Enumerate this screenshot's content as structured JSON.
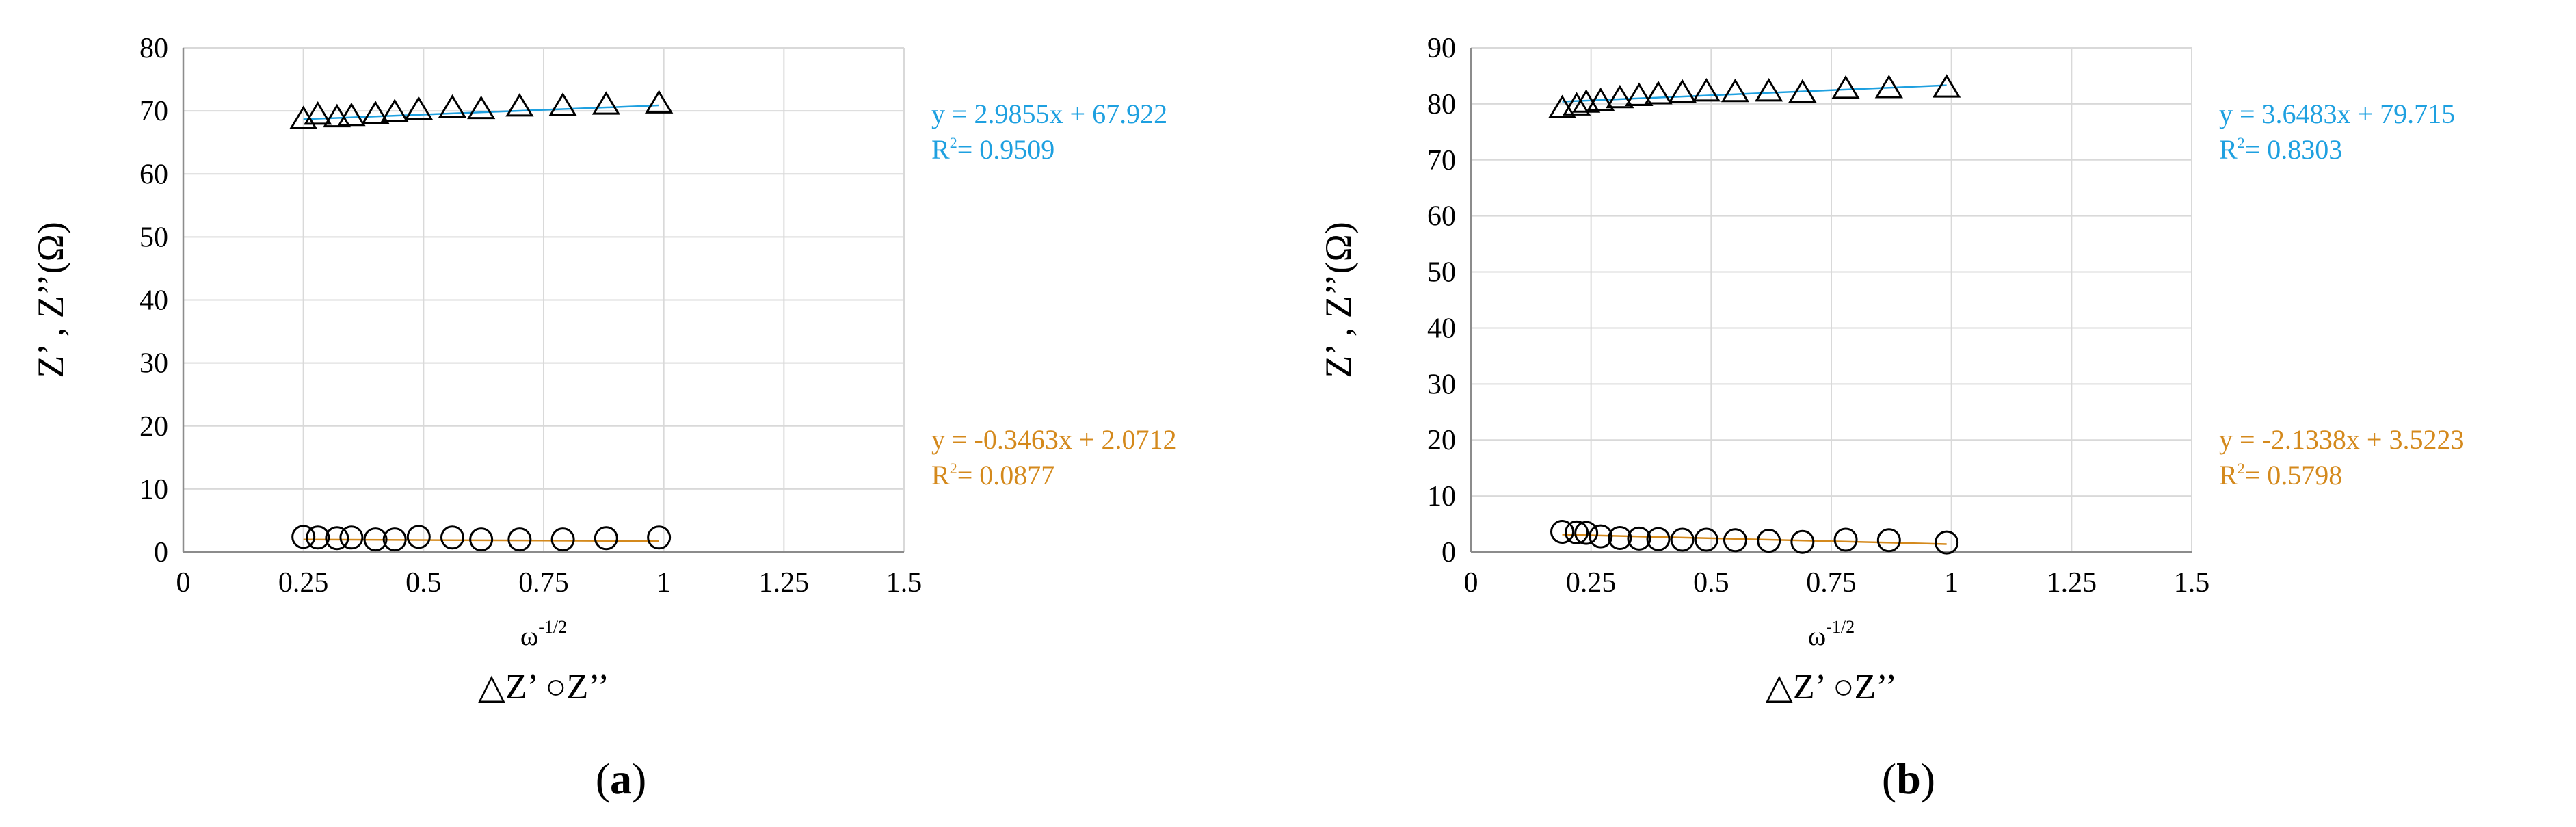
{
  "chart_data": [
    {
      "type": "scatter",
      "panel_label": "a",
      "xlabel": "ω",
      "xlabel_sup": "-1/2",
      "ylabel": "Z’ , Z’’(Ω)",
      "legend_text": "△Z’ ○Z’’",
      "xlim": [
        0,
        1.5
      ],
      "ylim": [
        0,
        80
      ],
      "xticks": [
        "0",
        "0.25",
        "0.5",
        "0.75",
        "1",
        "1.25",
        "1.5"
      ],
      "yticks": [
        "0",
        "10",
        "20",
        "30",
        "40",
        "50",
        "60",
        "70",
        "80"
      ],
      "grid": true,
      "series": [
        {
          "name": "Z’",
          "marker": "triangle",
          "x": [
            0.25,
            0.28,
            0.32,
            0.35,
            0.4,
            0.44,
            0.49,
            0.56,
            0.62,
            0.7,
            0.79,
            0.88,
            0.99
          ],
          "y": [
            68.5,
            69.2,
            68.8,
            69.0,
            69.3,
            69.6,
            70.0,
            70.3,
            70.1,
            70.5,
            70.6,
            70.8,
            71.0
          ],
          "trend": {
            "slope": 2.9855,
            "intercept": 67.922,
            "color": "#1ea0e0"
          },
          "equation": "y = 2.9855x + 67.922",
          "r2_prefix": "R",
          "r2_sup": "2",
          "r2_value": "= 0.9509",
          "color": "#1ea0e0"
        },
        {
          "name": "Z’’",
          "marker": "circle",
          "x": [
            0.25,
            0.28,
            0.32,
            0.35,
            0.4,
            0.44,
            0.49,
            0.56,
            0.62,
            0.7,
            0.79,
            0.88,
            0.99
          ],
          "y": [
            2.4,
            2.3,
            2.2,
            2.3,
            2.0,
            2.0,
            2.4,
            2.3,
            2.0,
            2.0,
            2.0,
            2.2,
            2.3
          ],
          "trend": {
            "slope": -0.3463,
            "intercept": 2.0712,
            "color": "#d4891c"
          },
          "equation": "y = -0.3463x + 2.0712",
          "r2_prefix": "R",
          "r2_sup": "2",
          "r2_value": "= 0.0877",
          "color": "#d4891c"
        }
      ]
    },
    {
      "type": "scatter",
      "panel_label": "b",
      "xlabel": "ω",
      "xlabel_sup": "-1/2",
      "ylabel": "Z’ , Z’’(Ω)",
      "legend_text": "△Z’ ○Z’’",
      "xlim": [
        0,
        1.5
      ],
      "ylim": [
        0,
        90
      ],
      "xticks": [
        "0",
        "0.25",
        "0.5",
        "0.75",
        "1",
        "1.25",
        "1.5"
      ],
      "yticks": [
        "0",
        "10",
        "20",
        "30",
        "40",
        "50",
        "60",
        "70",
        "80",
        "90"
      ],
      "grid": true,
      "series": [
        {
          "name": "Z’",
          "marker": "triangle",
          "x": [
            0.19,
            0.22,
            0.24,
            0.27,
            0.31,
            0.35,
            0.39,
            0.44,
            0.49,
            0.55,
            0.62,
            0.69,
            0.78,
            0.87,
            0.99
          ],
          "y": [
            79.0,
            79.5,
            80.0,
            80.3,
            80.8,
            81.2,
            81.5,
            81.8,
            82.0,
            81.9,
            82.0,
            81.8,
            82.5,
            82.6,
            82.7
          ],
          "trend": {
            "slope": 3.6483,
            "intercept": 79.715,
            "color": "#1ea0e0"
          },
          "equation": "y = 3.6483x + 79.715",
          "r2_prefix": "R",
          "r2_sup": "2",
          "r2_value": "= 0.8303",
          "color": "#1ea0e0"
        },
        {
          "name": "Z’’",
          "marker": "circle",
          "x": [
            0.19,
            0.22,
            0.24,
            0.27,
            0.31,
            0.35,
            0.39,
            0.44,
            0.49,
            0.55,
            0.62,
            0.69,
            0.78,
            0.87,
            0.99
          ],
          "y": [
            3.6,
            3.5,
            3.4,
            2.8,
            2.5,
            2.4,
            2.3,
            2.2,
            2.2,
            2.1,
            2.0,
            1.8,
            2.2,
            2.1,
            1.7
          ],
          "trend": {
            "slope": -2.1338,
            "intercept": 3.5223,
            "color": "#d4891c"
          },
          "equation": "y = -2.1338x + 3.5223",
          "r2_prefix": "R",
          "r2_sup": "2",
          "r2_value": "= 0.5798",
          "color": "#d4891c"
        }
      ]
    }
  ]
}
